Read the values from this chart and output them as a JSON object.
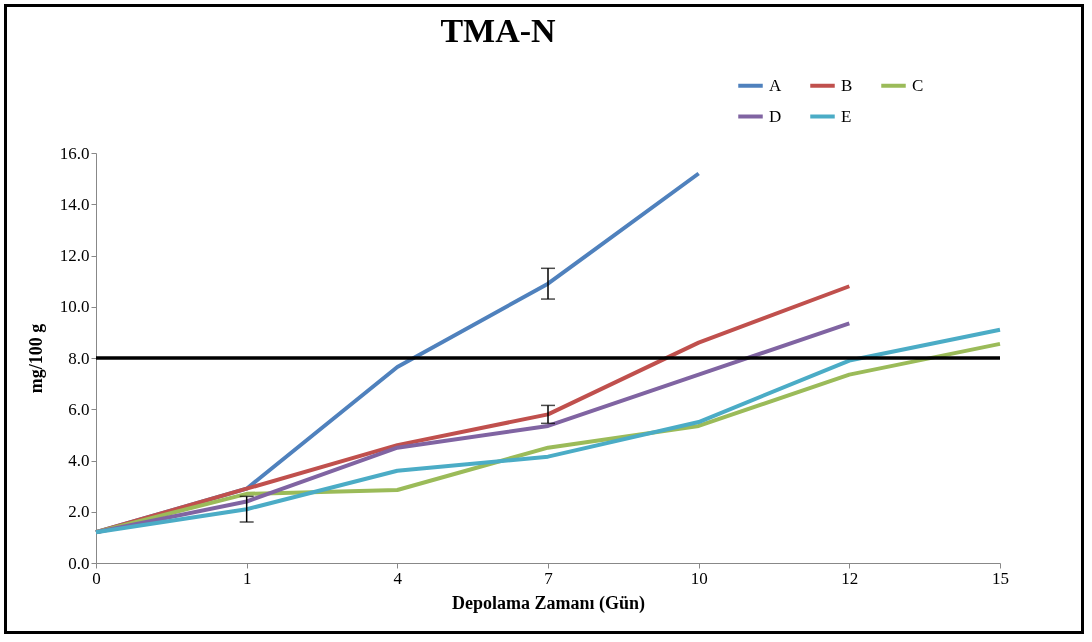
{
  "chart_data": {
    "type": "line",
    "title": "TMA-N",
    "xlabel": "Depolama Zamanı (Gün)",
    "ylabel": "mg/100 g",
    "categories": [
      "0",
      "1",
      "4",
      "7",
      "10",
      "12",
      "15"
    ],
    "series": [
      {
        "name": "A",
        "color": "#4f81bd",
        "values": [
          1.2,
          2.9,
          7.65,
          10.9,
          15.2,
          null,
          null
        ],
        "errors": [
          null,
          null,
          null,
          0.6,
          null,
          null,
          null
        ]
      },
      {
        "name": "B",
        "color": "#c0504d",
        "values": [
          1.2,
          2.9,
          4.6,
          5.8,
          8.6,
          10.8,
          null
        ],
        "errors": [
          null,
          null,
          null,
          0.35,
          null,
          null,
          null
        ]
      },
      {
        "name": "C",
        "color": "#9bbb59",
        "values": [
          1.2,
          2.7,
          2.85,
          4.5,
          5.35,
          7.35,
          8.55
        ]
      },
      {
        "name": "D",
        "color": "#8064a2",
        "values": [
          1.2,
          2.4,
          4.5,
          5.35,
          7.35,
          9.35,
          null
        ]
      },
      {
        "name": "E",
        "color": "#4bacc6",
        "values": [
          1.2,
          2.1,
          3.6,
          4.15,
          5.5,
          7.9,
          9.1
        ],
        "errors": [
          null,
          0.5,
          null,
          null,
          null,
          null,
          null
        ]
      }
    ],
    "ylim": [
      0,
      16
    ],
    "yticks": [
      {
        "value": 0,
        "label": "0.0"
      },
      {
        "value": 2,
        "label": "2.0"
      },
      {
        "value": 4,
        "label": "4.0"
      },
      {
        "value": 6,
        "label": "6.0"
      },
      {
        "value": 8,
        "label": "8.0"
      },
      {
        "value": 10,
        "label": "10.0"
      },
      {
        "value": 12,
        "label": "12.0"
      },
      {
        "value": 14,
        "label": "14.0"
      },
      {
        "value": 16,
        "label": "16.0"
      }
    ],
    "ref_lines": [
      {
        "axis": "y",
        "value": 8,
        "color": "#000000"
      }
    ],
    "grid": false,
    "legend": "top right",
    "marker": "none",
    "line_style": "solid"
  }
}
